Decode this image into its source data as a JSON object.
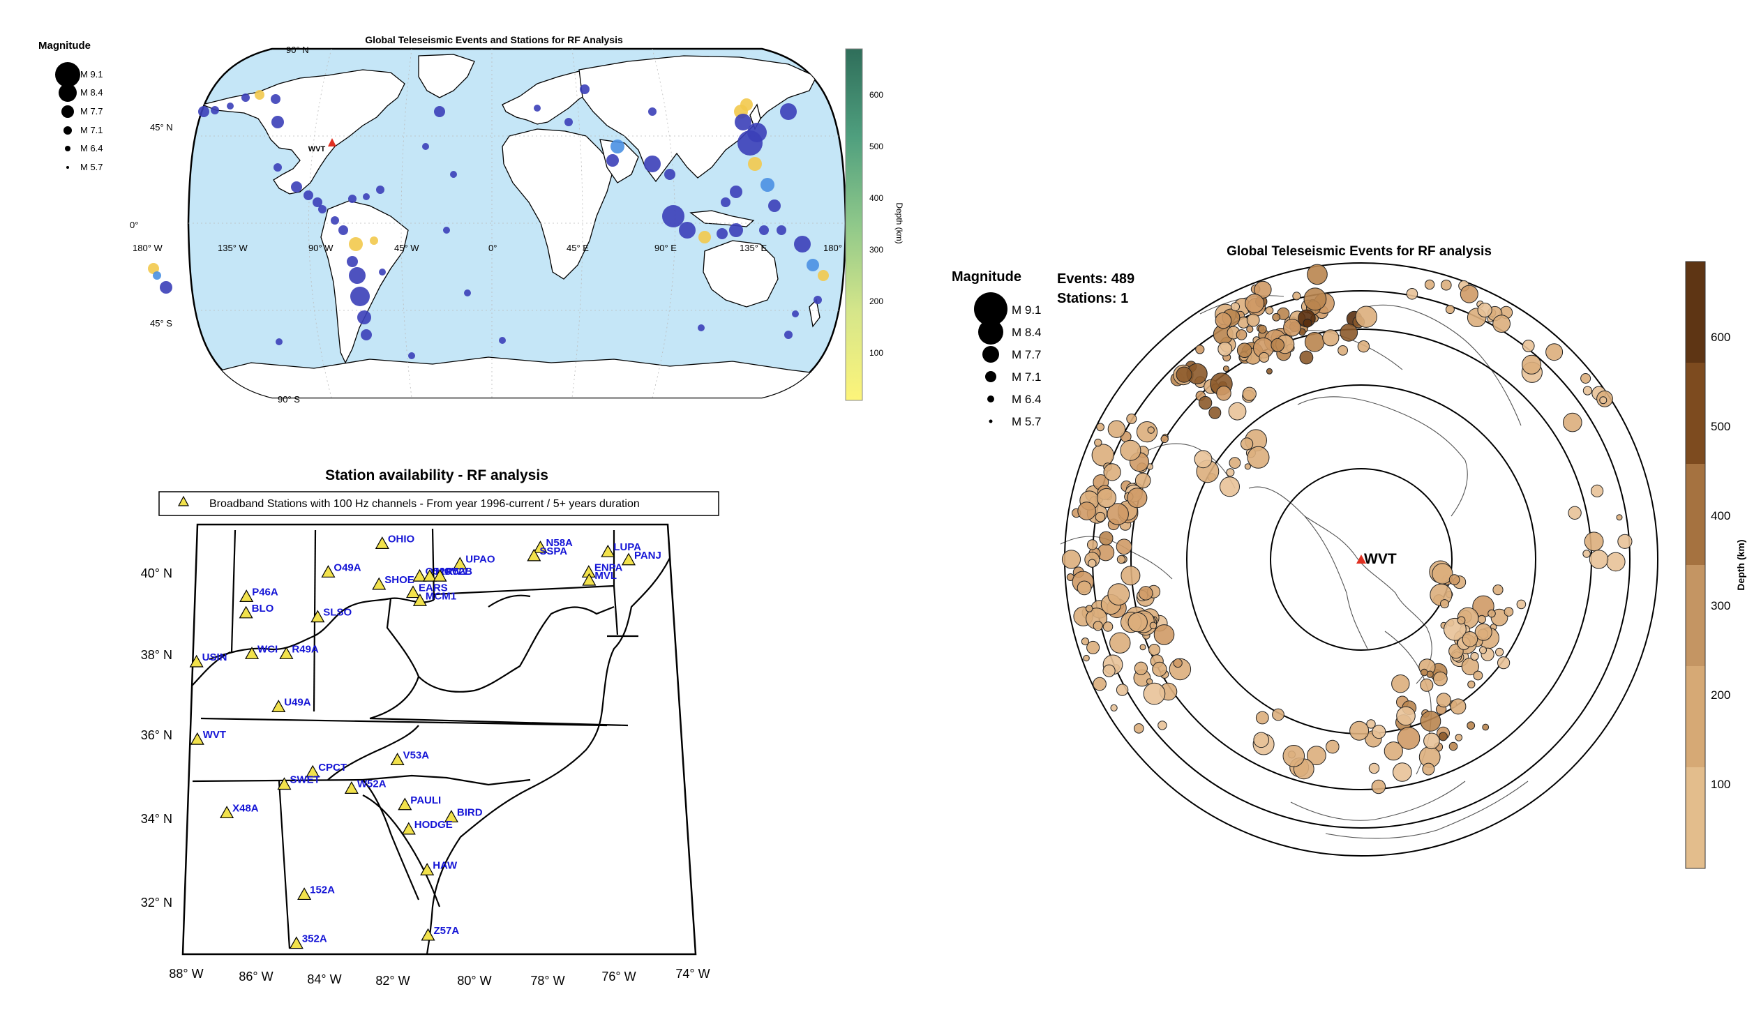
{
  "colors": {
    "ocean": "#c5e6f7",
    "land": "#ffffff",
    "event_blue": "#3b3fb8",
    "event_yellow": "#f2c94c",
    "station_red": "#e03021",
    "station_yellow": "#f2e24c",
    "station_label": "#1515d6",
    "depth_brown_light": "#ddb07a",
    "depth_brown_dark": "#5a3010"
  },
  "map1": {
    "title": "Global Teleseismic Events and Stations for RF Analysis",
    "legend_title": "Magnitude",
    "magnitude_legend": [
      "M 9.1",
      "M 8.4",
      "M 7.7",
      "M 7.1",
      "M 6.4",
      "M 5.7"
    ],
    "lat_labels": [
      "90° N",
      "45° N",
      "0°",
      "45° S",
      "90° S"
    ],
    "lon_labels": [
      "180° W",
      "135° W",
      "90° W",
      "45° W",
      "0°",
      "45° E",
      "90° E",
      "135° E",
      "180° E"
    ],
    "station_label": "WVT",
    "colorbar_label": "Depth (km)",
    "colorbar_ticks": [
      "600",
      "500",
      "400",
      "300",
      "200",
      "100"
    ]
  },
  "map2": {
    "title": "Station availability - RF analysis",
    "legend_text": "Broadband Stations with 100 Hz channels - From year 1996-current / 5+ years duration",
    "lat_labels": [
      "40° N",
      "38° N",
      "36° N",
      "34° N",
      "32° N"
    ],
    "lon_labels": [
      "88° W",
      "86° W",
      "84° W",
      "82° W",
      "80° W",
      "78° W",
      "76° W",
      "74° W"
    ],
    "stations": [
      {
        "code": "OHIO",
        "lon": -82.5,
        "lat": 40.9
      },
      {
        "code": "N58A",
        "lon": -77.8,
        "lat": 40.8
      },
      {
        "code": "SSPA",
        "lon": -78.0,
        "lat": 40.6
      },
      {
        "code": "LUPA",
        "lon": -75.8,
        "lat": 40.7
      },
      {
        "code": "PANJ",
        "lon": -75.2,
        "lat": 40.5
      },
      {
        "code": "UPAO",
        "lon": -80.2,
        "lat": 40.4
      },
      {
        "code": "O49A",
        "lon": -84.1,
        "lat": 40.2
      },
      {
        "code": "SHOE",
        "lon": -82.6,
        "lat": 39.9
      },
      {
        "code": "O52A",
        "lon": -81.4,
        "lat": 40.1
      },
      {
        "code": "MCWV",
        "lon": -81.1,
        "lat": 40.1
      },
      {
        "code": "R52B",
        "lon": -80.8,
        "lat": 40.1
      },
      {
        "code": "ENPA",
        "lon": -76.4,
        "lat": 40.2
      },
      {
        "code": "MVL",
        "lon": -76.4,
        "lat": 40.0
      },
      {
        "code": "P46A",
        "lon": -86.5,
        "lat": 39.6
      },
      {
        "code": "EARS",
        "lon": -81.6,
        "lat": 39.7
      },
      {
        "code": "MCM1",
        "lon": -81.4,
        "lat": 39.5
      },
      {
        "code": "BLO",
        "lon": -86.5,
        "lat": 39.2
      },
      {
        "code": "SLSO",
        "lon": -84.4,
        "lat": 39.1
      },
      {
        "code": "USIN",
        "lon": -87.9,
        "lat": 38.0
      },
      {
        "code": "WCI",
        "lon": -86.3,
        "lat": 38.2
      },
      {
        "code": "R49A",
        "lon": -85.3,
        "lat": 38.2
      },
      {
        "code": "U49A",
        "lon": -85.5,
        "lat": 36.9
      },
      {
        "code": "WVT",
        "lon": -87.8,
        "lat": 36.1
      },
      {
        "code": "V53A",
        "lon": -82.1,
        "lat": 35.6
      },
      {
        "code": "CPCT",
        "lon": -84.5,
        "lat": 35.3
      },
      {
        "code": "SWET",
        "lon": -85.3,
        "lat": 35.0
      },
      {
        "code": "W52A",
        "lon": -83.4,
        "lat": 34.9
      },
      {
        "code": "PAULI",
        "lon": -81.9,
        "lat": 34.5
      },
      {
        "code": "BIRD",
        "lon": -80.6,
        "lat": 34.2
      },
      {
        "code": "X48A",
        "lon": -86.9,
        "lat": 34.3
      },
      {
        "code": "HODGE",
        "lon": -81.8,
        "lat": 33.9
      },
      {
        "code": "HAW",
        "lon": -81.3,
        "lat": 32.9
      },
      {
        "code": "152A",
        "lon": -84.7,
        "lat": 32.3
      },
      {
        "code": "Z57A",
        "lon": -81.3,
        "lat": 31.3
      },
      {
        "code": "352A",
        "lon": -84.9,
        "lat": 31.1
      }
    ]
  },
  "map3": {
    "title": "Global Teleseismic Events for RF analysis",
    "legend_title": "Magnitude",
    "magnitude_legend": [
      "M 9.1",
      "M 8.4",
      "M 7.7",
      "M 7.1",
      "M 6.4",
      "M 5.7"
    ],
    "events_text": "Events: 489",
    "stations_text": "Stations: 1",
    "station_label": "WVT",
    "colorbar_label": "Depth (km)",
    "colorbar_ticks": [
      "600",
      "500",
      "400",
      "300",
      "200",
      "100"
    ]
  }
}
